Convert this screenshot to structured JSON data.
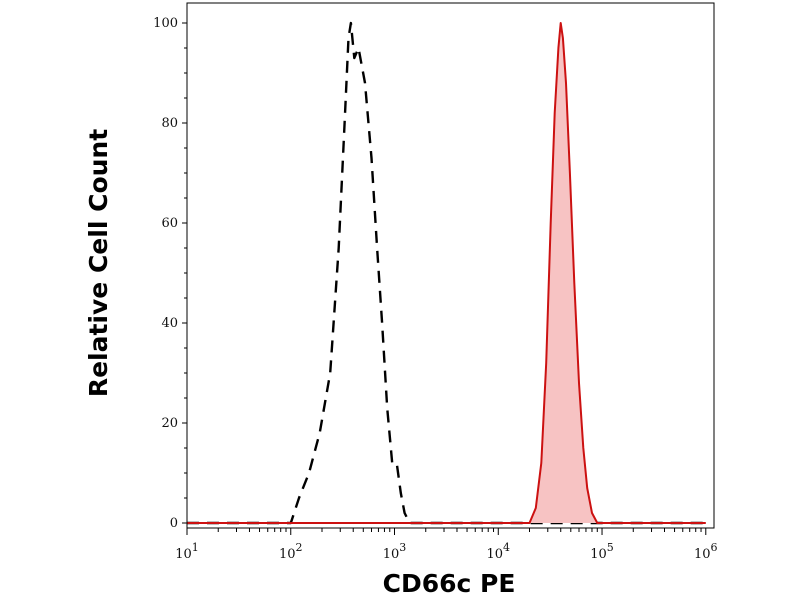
{
  "chart_data": {
    "type": "area",
    "title": "",
    "xlabel": "CD66c PE",
    "ylabel": "Relative Cell Count",
    "x_scale": "log",
    "xlim": [
      10,
      1200000
    ],
    "ylim": [
      -1,
      104
    ],
    "grid": false,
    "x_ticks": [
      {
        "value": 10,
        "base": "10",
        "exp": "1"
      },
      {
        "value": 100,
        "base": "10",
        "exp": "2"
      },
      {
        "value": 1000,
        "base": "10",
        "exp": "3"
      },
      {
        "value": 10000,
        "base": "10",
        "exp": "4"
      },
      {
        "value": 100000,
        "base": "10",
        "exp": "5"
      },
      {
        "value": 1000000,
        "base": "10",
        "exp": "6"
      }
    ],
    "y_ticks": [
      {
        "value": 0,
        "label": "0"
      },
      {
        "value": 20,
        "label": "20"
      },
      {
        "value": 40,
        "label": "40"
      },
      {
        "value": 60,
        "label": "60"
      },
      {
        "value": 80,
        "label": "80"
      },
      {
        "value": 100,
        "label": "100"
      }
    ],
    "series": [
      {
        "style": "dashed",
        "color": "#000000",
        "fill": "none",
        "x": [
          10,
          100,
          120,
          150,
          190,
          240,
          290,
          330,
          360,
          380,
          410,
          450,
          520,
          600,
          680,
          760,
          850,
          950,
          1050,
          1150,
          1250,
          1400,
          2000,
          1000000
        ],
        "y": [
          0,
          0,
          5,
          10,
          18,
          30,
          55,
          80,
          97,
          100,
          93,
          95,
          88,
          73,
          55,
          40,
          23,
          12,
          12,
          6,
          2,
          0,
          0,
          0
        ]
      },
      {
        "style": "solid",
        "color": "#cc1111",
        "fill": "#f7c3c3",
        "x": [
          10,
          20000,
          23000,
          26000,
          29000,
          32000,
          35000,
          38000,
          40000,
          42000,
          45000,
          49000,
          54000,
          60000,
          66000,
          72000,
          80000,
          90000,
          1000000
        ],
        "y": [
          0,
          0,
          3,
          12,
          32,
          60,
          82,
          95,
          100,
          97,
          88,
          70,
          48,
          28,
          15,
          7,
          2,
          0,
          0
        ]
      }
    ]
  }
}
